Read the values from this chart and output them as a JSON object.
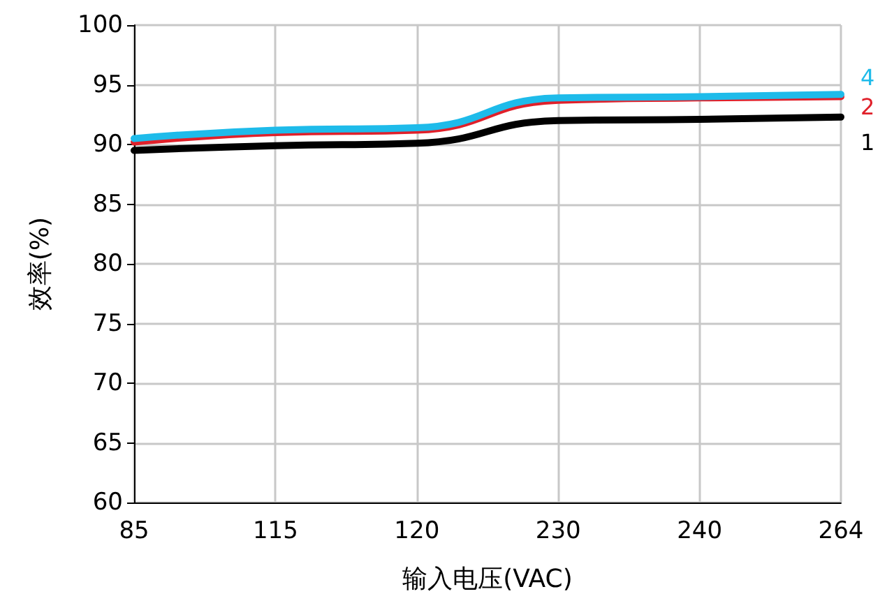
{
  "chart_data": {
    "type": "line",
    "xlabel": "输入电压(VAC)",
    "ylabel": "效率(%)",
    "categories": [
      "85",
      "115",
      "120",
      "230",
      "240",
      "264"
    ],
    "series": [
      {
        "name": "1",
        "color": "#000000",
        "values": [
          89.5,
          89.9,
          90.1,
          92.0,
          92.1,
          92.3
        ]
      },
      {
        "name": "2",
        "color": "#e0202a",
        "values": [
          90.2,
          91.0,
          91.2,
          93.7,
          93.9,
          94.0
        ]
      },
      {
        "name": "4",
        "color": "#1ebbea",
        "values": [
          90.5,
          91.2,
          91.4,
          93.9,
          94.0,
          94.2
        ]
      }
    ],
    "ylim": [
      60,
      100
    ],
    "yticks": [
      60,
      65,
      70,
      75,
      80,
      85,
      90,
      95,
      100
    ],
    "grid": true,
    "legend": false,
    "marker": "none",
    "line_style": "solid"
  }
}
